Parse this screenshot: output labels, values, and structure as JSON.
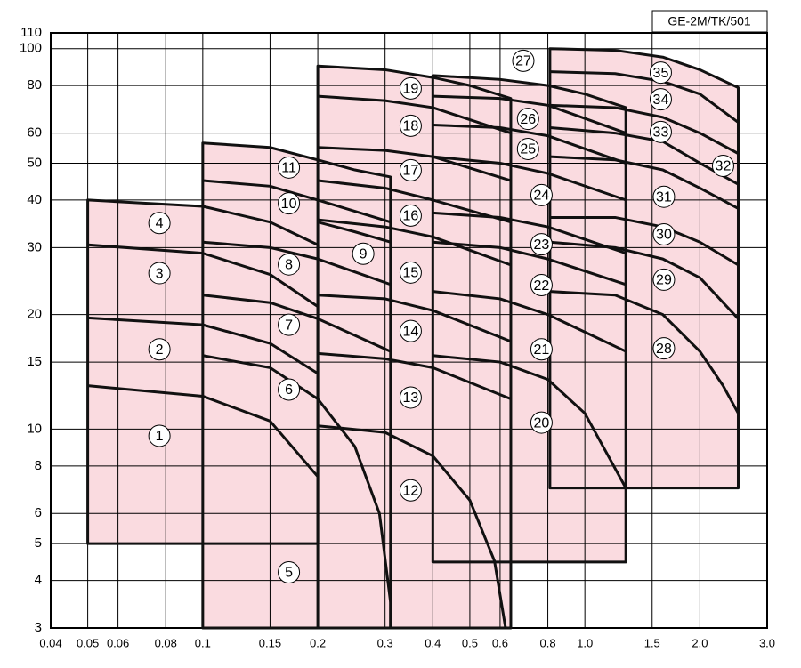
{
  "chart_data": {
    "type": "region-map",
    "title": "GE-2M/TK/501",
    "xscale": "log",
    "yscale": "log",
    "grid": true,
    "fill_color": "#fadbe0",
    "line_color": "#111111",
    "xlim": [
      0.04,
      3
    ],
    "ylim": [
      3,
      110
    ],
    "xticks": [
      0.04,
      0.05,
      0.06,
      0.08,
      0.1,
      0.15,
      0.2,
      0.3,
      0.4,
      0.5,
      0.6,
      0.8,
      {
        "value": 1,
        "label": "1.0"
      },
      1.5,
      {
        "value": 2,
        "label": "2.0"
      },
      {
        "value": 3,
        "label": "3.0"
      }
    ],
    "yticks": [
      3,
      4,
      5,
      6,
      8,
      10,
      15,
      20,
      30,
      40,
      50,
      60,
      80,
      100,
      110
    ],
    "envelopes": [
      [
        [
          0.05,
          5
        ],
        [
          0.05,
          40
        ],
        [
          0.1,
          38.5
        ],
        [
          0.15,
          35
        ],
        [
          0.2,
          30.5
        ],
        [
          0.2,
          5
        ]
      ],
      [
        [
          0.1,
          3
        ],
        [
          0.1,
          56.5
        ],
        [
          0.15,
          55
        ],
        [
          0.2,
          51
        ],
        [
          0.25,
          48
        ],
        [
          0.31,
          46
        ],
        [
          0.31,
          3
        ]
      ],
      [
        [
          0.2,
          3
        ],
        [
          0.2,
          90
        ],
        [
          0.3,
          88
        ],
        [
          0.4,
          84
        ],
        [
          0.5,
          80
        ],
        [
          0.64,
          74
        ],
        [
          0.64,
          3
        ]
      ],
      [
        [
          0.4,
          4.47
        ],
        [
          0.4,
          85
        ],
        [
          0.6,
          83
        ],
        [
          0.8,
          80
        ],
        [
          1.0,
          76
        ],
        [
          1.28,
          70
        ],
        [
          1.28,
          4.47
        ]
      ],
      [
        [
          0.81,
          7
        ],
        [
          0.81,
          100
        ],
        [
          1.2,
          99
        ],
        [
          1.6,
          95
        ],
        [
          2.0,
          88
        ],
        [
          2.52,
          79
        ],
        [
          2.52,
          7
        ]
      ]
    ],
    "curves": [
      [
        [
          0.05,
          30.5
        ],
        [
          0.1,
          29
        ],
        [
          0.15,
          25.5
        ],
        [
          0.2,
          21
        ]
      ],
      [
        [
          0.05,
          19.6
        ],
        [
          0.1,
          18.8
        ],
        [
          0.15,
          16.8
        ],
        [
          0.2,
          14
        ]
      ],
      [
        [
          0.05,
          13
        ],
        [
          0.1,
          12.2
        ],
        [
          0.15,
          10.5
        ],
        [
          0.2,
          7.5
        ]
      ],
      [
        [
          0.1,
          45
        ],
        [
          0.15,
          43.5
        ],
        [
          0.2,
          40
        ],
        [
          0.31,
          35
        ]
      ],
      [
        [
          0.2,
          35
        ],
        [
          0.25,
          33
        ],
        [
          0.31,
          31
        ]
      ],
      [
        [
          0.1,
          31
        ],
        [
          0.15,
          30
        ],
        [
          0.2,
          28
        ],
        [
          0.31,
          24
        ]
      ],
      [
        [
          0.1,
          22.5
        ],
        [
          0.15,
          21.5
        ],
        [
          0.2,
          19.5
        ],
        [
          0.31,
          16
        ]
      ],
      [
        [
          0.1,
          15.6
        ],
        [
          0.15,
          14.5
        ],
        [
          0.2,
          12
        ],
        [
          0.25,
          9
        ],
        [
          0.29,
          6
        ],
        [
          0.31,
          3.5
        ],
        [
          0.31,
          3
        ]
      ],
      [
        [
          0.2,
          75
        ],
        [
          0.3,
          73
        ],
        [
          0.4,
          70
        ],
        [
          0.64,
          60
        ]
      ],
      [
        [
          0.2,
          55
        ],
        [
          0.3,
          54
        ],
        [
          0.4,
          52
        ],
        [
          0.64,
          45
        ]
      ],
      [
        [
          0.2,
          45
        ],
        [
          0.3,
          43
        ],
        [
          0.4,
          40
        ],
        [
          0.64,
          35
        ]
      ],
      [
        [
          0.2,
          35.5
        ],
        [
          0.3,
          34
        ],
        [
          0.4,
          32
        ],
        [
          0.64,
          27
        ]
      ],
      [
        [
          0.2,
          22.5
        ],
        [
          0.3,
          22
        ],
        [
          0.4,
          20.5
        ],
        [
          0.64,
          17
        ]
      ],
      [
        [
          0.2,
          15.8
        ],
        [
          0.3,
          15.3
        ],
        [
          0.4,
          14.5
        ],
        [
          0.64,
          12
        ]
      ],
      [
        [
          0.2,
          10.2
        ],
        [
          0.3,
          9.8
        ],
        [
          0.4,
          8.5
        ],
        [
          0.5,
          6.5
        ],
        [
          0.58,
          4.5
        ],
        [
          0.62,
          3
        ]
      ],
      [
        [
          0.4,
          75
        ],
        [
          0.6,
          74
        ],
        [
          0.8,
          71
        ],
        [
          1.28,
          60
        ]
      ],
      [
        [
          0.4,
          63
        ],
        [
          0.6,
          62
        ],
        [
          0.8,
          59
        ],
        [
          1.28,
          50
        ]
      ],
      [
        [
          0.4,
          52
        ],
        [
          0.6,
          50
        ],
        [
          0.8,
          47
        ],
        [
          1.28,
          40
        ]
      ],
      [
        [
          0.4,
          37
        ],
        [
          0.6,
          36
        ],
        [
          0.8,
          34
        ],
        [
          1.28,
          29
        ]
      ],
      [
        [
          0.4,
          31
        ],
        [
          0.6,
          30
        ],
        [
          0.8,
          28
        ],
        [
          1.28,
          24
        ]
      ],
      [
        [
          0.4,
          23
        ],
        [
          0.6,
          22
        ],
        [
          0.8,
          20
        ],
        [
          1.28,
          16
        ]
      ],
      [
        [
          0.4,
          15.6
        ],
        [
          0.6,
          15
        ],
        [
          0.8,
          13.5
        ],
        [
          1.0,
          11
        ],
        [
          1.28,
          7
        ]
      ],
      [
        [
          0.81,
          87
        ],
        [
          1.2,
          86
        ],
        [
          1.6,
          82
        ],
        [
          2.0,
          76
        ],
        [
          2.52,
          64
        ]
      ],
      [
        [
          0.81,
          71
        ],
        [
          1.2,
          70
        ],
        [
          1.6,
          66
        ],
        [
          2.0,
          60
        ],
        [
          2.52,
          53
        ]
      ],
      [
        [
          0.81,
          62
        ],
        [
          1.2,
          60
        ],
        [
          1.6,
          57
        ],
        [
          2.0,
          50
        ],
        [
          2.52,
          44
        ]
      ],
      [
        [
          0.81,
          52
        ],
        [
          1.2,
          51
        ],
        [
          1.6,
          48
        ],
        [
          2.0,
          43
        ],
        [
          2.52,
          38
        ]
      ],
      [
        [
          0.81,
          36
        ],
        [
          1.2,
          36
        ],
        [
          1.6,
          34
        ],
        [
          2.0,
          31
        ],
        [
          2.52,
          27
        ]
      ],
      [
        [
          0.81,
          31
        ],
        [
          1.2,
          30
        ],
        [
          1.6,
          28
        ],
        [
          2.0,
          25
        ],
        [
          2.52,
          19.5
        ]
      ],
      [
        [
          0.81,
          23
        ],
        [
          1.2,
          22.5
        ],
        [
          1.6,
          20
        ],
        [
          2.0,
          16
        ],
        [
          2.3,
          13
        ],
        [
          2.52,
          11
        ]
      ]
    ],
    "regions": [
      {
        "label": "1",
        "x": 0.077,
        "y": 9.6
      },
      {
        "label": "2",
        "x": 0.077,
        "y": 16.2
      },
      {
        "label": "3",
        "x": 0.077,
        "y": 25.7
      },
      {
        "label": "4",
        "x": 0.077,
        "y": 34.8
      },
      {
        "label": "5",
        "x": 0.168,
        "y": 4.2
      },
      {
        "label": "6",
        "x": 0.168,
        "y": 12.7
      },
      {
        "label": "7",
        "x": 0.168,
        "y": 18.8
      },
      {
        "label": "8",
        "x": 0.168,
        "y": 27.1
      },
      {
        "label": "9",
        "x": 0.263,
        "y": 28.9
      },
      {
        "label": "10",
        "x": 0.168,
        "y": 39.2
      },
      {
        "label": "11",
        "x": 0.168,
        "y": 48.7
      },
      {
        "label": "12",
        "x": 0.35,
        "y": 6.9
      },
      {
        "label": "13",
        "x": 0.35,
        "y": 12.1
      },
      {
        "label": "14",
        "x": 0.35,
        "y": 18.1
      },
      {
        "label": "15",
        "x": 0.35,
        "y": 25.8
      },
      {
        "label": "16",
        "x": 0.35,
        "y": 36.4
      },
      {
        "label": "17",
        "x": 0.35,
        "y": 47.9
      },
      {
        "label": "18",
        "x": 0.35,
        "y": 62.7
      },
      {
        "label": "19",
        "x": 0.35,
        "y": 78.6
      },
      {
        "label": "20",
        "x": 0.77,
        "y": 10.4
      },
      {
        "label": "21",
        "x": 0.77,
        "y": 16.2
      },
      {
        "label": "22",
        "x": 0.77,
        "y": 23.9
      },
      {
        "label": "23",
        "x": 0.77,
        "y": 30.6
      },
      {
        "label": "24",
        "x": 0.77,
        "y": 41.2
      },
      {
        "label": "25",
        "x": 0.71,
        "y": 54.5
      },
      {
        "label": "26",
        "x": 0.71,
        "y": 65.4
      },
      {
        "label": "27",
        "x": 0.69,
        "y": 92.9
      },
      {
        "label": "28",
        "x": 1.61,
        "y": 16.3
      },
      {
        "label": "29",
        "x": 1.61,
        "y": 24.7
      },
      {
        "label": "30",
        "x": 1.61,
        "y": 32.5
      },
      {
        "label": "31",
        "x": 1.61,
        "y": 40.8
      },
      {
        "label": "32",
        "x": 2.3,
        "y": 49.2
      },
      {
        "label": "33",
        "x": 1.58,
        "y": 60.4
      },
      {
        "label": "34",
        "x": 1.58,
        "y": 73.6
      },
      {
        "label": "35",
        "x": 1.58,
        "y": 86.5
      }
    ]
  }
}
